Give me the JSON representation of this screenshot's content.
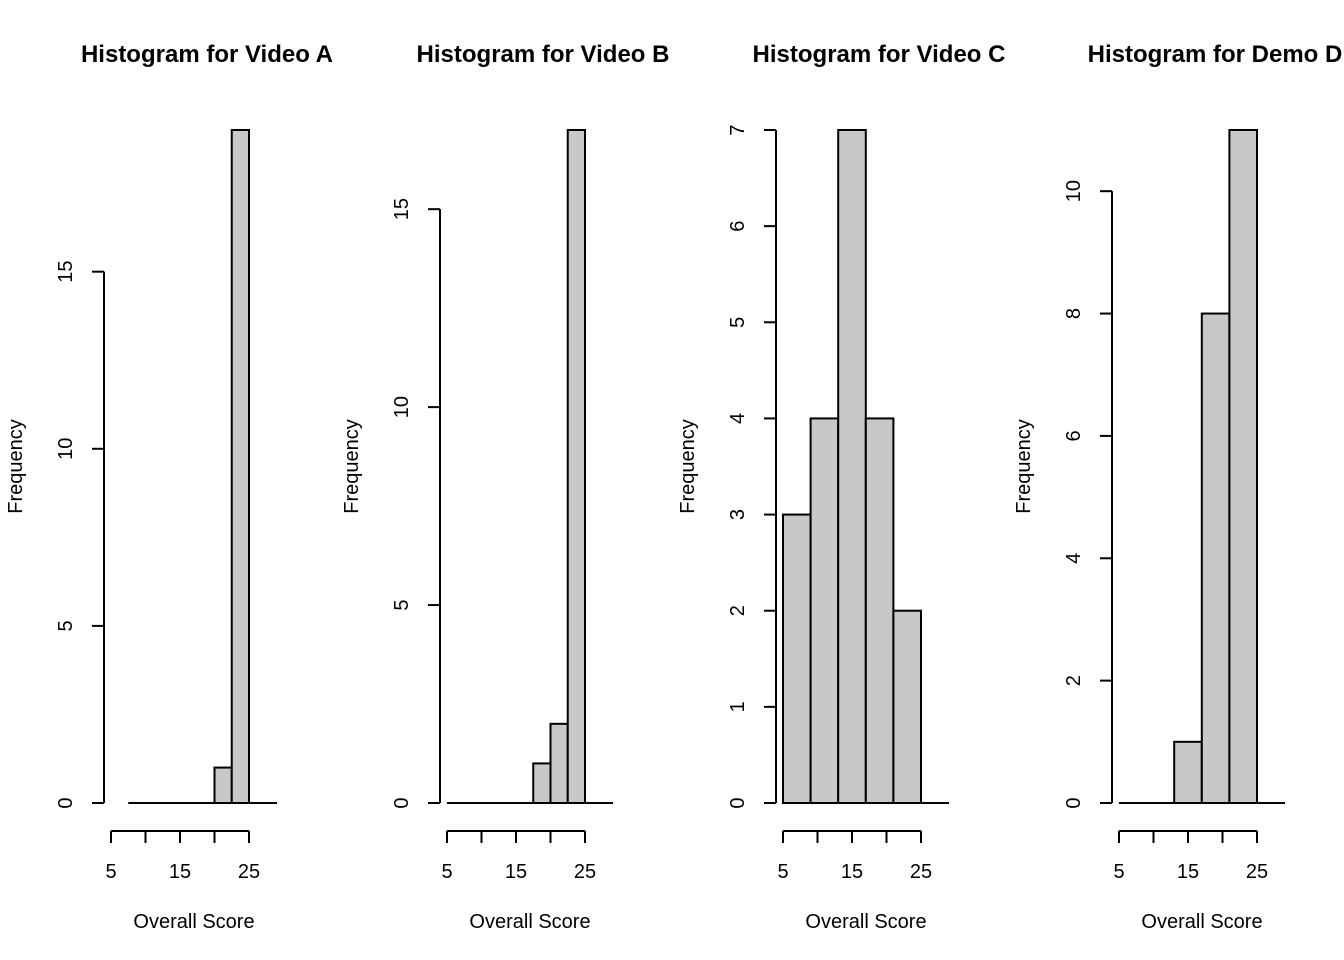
{
  "colors": {
    "bar_fill": "#c8c8c8",
    "bar_stroke": "#000000",
    "background": "#ffffff"
  },
  "chart_data": [
    {
      "type": "bar",
      "title": "Histogram for Video A",
      "xlabel": "Overall Score",
      "ylabel": "Frequency",
      "bin_edges": [
        7.5,
        10,
        12.5,
        15,
        17.5,
        20,
        22.5,
        25
      ],
      "counts": [
        0,
        0,
        0,
        0,
        0,
        1,
        19
      ],
      "xticks": [
        5,
        10,
        15,
        20,
        25
      ],
      "xtick_labels": [
        "5",
        "",
        "15",
        "",
        "25"
      ],
      "xlim": [
        5,
        25
      ],
      "yticks": [
        0,
        5,
        10,
        15
      ],
      "ylim": [
        0,
        19
      ]
    },
    {
      "type": "bar",
      "title": "Histogram for Video B",
      "xlabel": "Overall Score",
      "ylabel": "Frequency",
      "bin_edges": [
        5,
        7.5,
        10,
        12.5,
        15,
        17.5,
        20,
        22.5,
        25
      ],
      "counts": [
        0,
        0,
        0,
        0,
        0,
        1,
        2,
        17
      ],
      "xticks": [
        5,
        10,
        15,
        20,
        25
      ],
      "xtick_labels": [
        "5",
        "",
        "15",
        "",
        "25"
      ],
      "xlim": [
        5,
        25
      ],
      "yticks": [
        0,
        5,
        10,
        15
      ],
      "ylim": [
        0,
        17
      ]
    },
    {
      "type": "bar",
      "title": "Histogram for Video C",
      "xlabel": "Overall Score",
      "ylabel": "Frequency",
      "bin_edges": [
        5,
        9,
        13,
        17,
        21,
        25
      ],
      "counts": [
        3,
        4,
        7,
        4,
        2
      ],
      "xticks": [
        5,
        10,
        15,
        20,
        25
      ],
      "xtick_labels": [
        "5",
        "",
        "15",
        "",
        "25"
      ],
      "xlim": [
        5,
        25
      ],
      "yticks": [
        0,
        1,
        2,
        3,
        4,
        5,
        6,
        7
      ],
      "ylim": [
        0,
        7
      ]
    },
    {
      "type": "bar",
      "title": "Histogram for Demo D",
      "xlabel": "Overall Score",
      "ylabel": "Frequency",
      "bin_edges": [
        5,
        9,
        13,
        17,
        21,
        25
      ],
      "counts": [
        0,
        0,
        1,
        8,
        11
      ],
      "xticks": [
        5,
        10,
        15,
        20,
        25
      ],
      "xtick_labels": [
        "5",
        "",
        "15",
        "",
        "25"
      ],
      "xlim": [
        5,
        25
      ],
      "yticks": [
        0,
        2,
        4,
        6,
        8,
        10
      ],
      "ylim": [
        0,
        11
      ]
    }
  ]
}
